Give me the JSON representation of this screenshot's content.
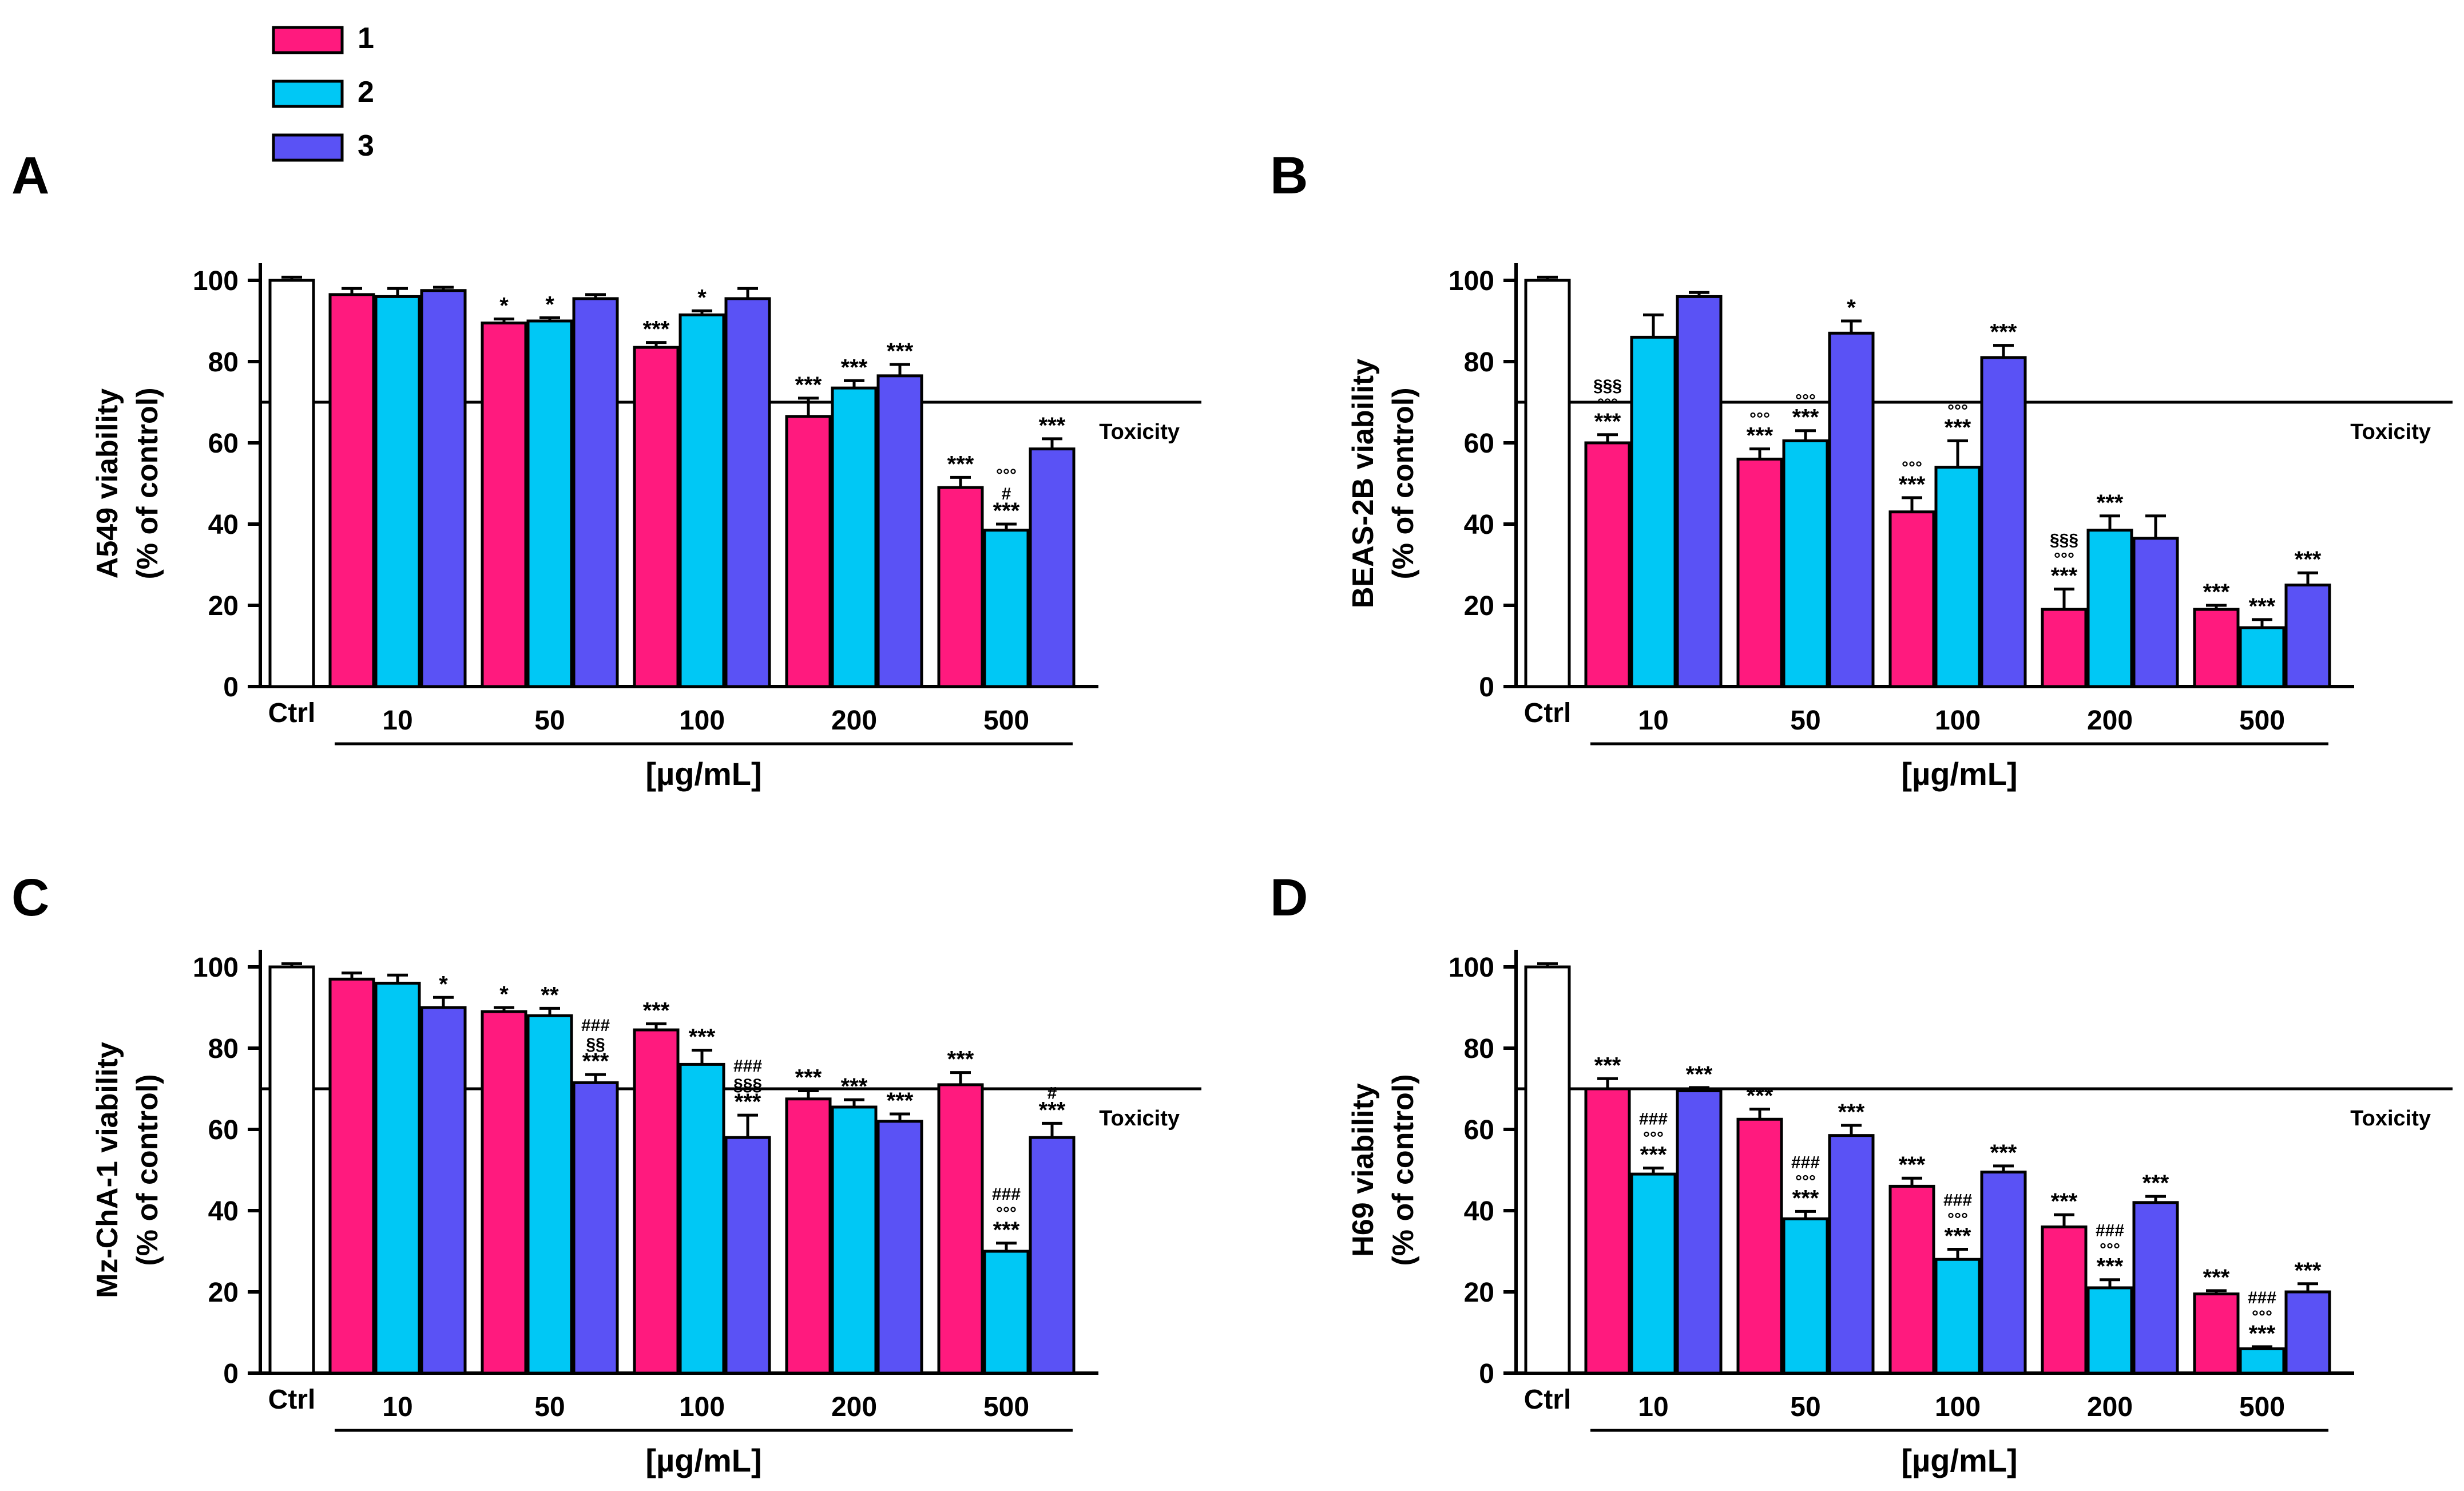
{
  "legend": [
    {
      "label": "1",
      "color": "#ff1a7e"
    },
    {
      "label": "2",
      "color": "#00c8f5"
    },
    {
      "label": "3",
      "color": "#5a52f5"
    }
  ],
  "colors": {
    "ctrl": "#ffffff",
    "stroke": "#000000"
  },
  "chart_data": [
    {
      "panel": "A",
      "type": "bar",
      "ylabel_line1": "A549 viability",
      "ylabel_line2": "(% of control)",
      "xlabel": "[µg/mL]",
      "ctrl_label": "Ctrl",
      "ylim": [
        0,
        100
      ],
      "yticks": [
        0,
        20,
        40,
        60,
        80,
        100
      ],
      "threshold": {
        "value": 70,
        "label": "Toxicity"
      },
      "ctrl": {
        "value": 100,
        "error": 0.8
      },
      "categories": [
        "10",
        "50",
        "100",
        "200",
        "500"
      ],
      "series": [
        {
          "name": "1",
          "values": [
            96.5,
            89.5,
            83.5,
            66.5,
            49
          ],
          "errors": [
            1.5,
            1.0,
            1.2,
            4.5,
            2.5
          ],
          "annotations": [
            [],
            [
              "*"
            ],
            [
              "***"
            ],
            [
              "***"
            ],
            [
              "***"
            ]
          ]
        },
        {
          "name": "2",
          "values": [
            96,
            90,
            91.5,
            73.5,
            38.5
          ],
          "errors": [
            2.0,
            0.8,
            1.0,
            1.8,
            1.5
          ],
          "annotations": [
            [],
            [
              "*"
            ],
            [
              "*"
            ],
            [
              "***"
            ],
            [
              "***",
              "#",
              "°°°"
            ]
          ]
        },
        {
          "name": "3",
          "values": [
            97.5,
            95.5,
            95.5,
            76.5,
            58.5
          ],
          "errors": [
            0.8,
            1.0,
            2.5,
            2.8,
            2.5
          ],
          "annotations": [
            [],
            [],
            [],
            [
              "***"
            ],
            [
              "***"
            ]
          ]
        }
      ]
    },
    {
      "panel": "B",
      "type": "bar",
      "ylabel_line1": "BEAS-2B viability",
      "ylabel_line2": "(% of control)",
      "xlabel": "[µg/mL]",
      "ctrl_label": "Ctrl",
      "ylim": [
        0,
        100
      ],
      "yticks": [
        0,
        20,
        40,
        60,
        80,
        100
      ],
      "threshold": {
        "value": 70,
        "label": "Toxicity"
      },
      "ctrl": {
        "value": 100,
        "error": 0.8
      },
      "categories": [
        "10",
        "50",
        "100",
        "200",
        "500"
      ],
      "series": [
        {
          "name": "1",
          "values": [
            60,
            56,
            43,
            19,
            19
          ],
          "errors": [
            2.0,
            2.5,
            3.5,
            5.0,
            1.0
          ],
          "annotations": [
            [
              "***",
              "°°°",
              "§§§"
            ],
            [
              "***",
              "°°°"
            ],
            [
              "***",
              "°°°"
            ],
            [
              "***",
              "°°°",
              "§§§"
            ],
            [
              "***"
            ]
          ]
        },
        {
          "name": "2",
          "values": [
            86,
            60.5,
            54,
            38.5,
            14.5
          ],
          "errors": [
            5.5,
            2.5,
            6.5,
            3.5,
            2.0
          ],
          "annotations": [
            [],
            [
              "***",
              "°°°"
            ],
            [
              "***",
              "°°°"
            ],
            [
              "***"
            ],
            [
              "***"
            ]
          ]
        },
        {
          "name": "3",
          "values": [
            96,
            87,
            81,
            36.5,
            25
          ],
          "errors": [
            1.0,
            3.0,
            3.0,
            5.5,
            3.0
          ],
          "annotations": [
            [],
            [
              "*"
            ],
            [
              "***"
            ],
            [],
            [
              "***"
            ]
          ]
        }
      ]
    },
    {
      "panel": "C",
      "type": "bar",
      "ylabel_line1": "Mz-ChA-1 viability",
      "ylabel_line2": "(% of control)",
      "xlabel": "[µg/mL]",
      "ctrl_label": "Ctrl",
      "ylim": [
        0,
        100
      ],
      "yticks": [
        0,
        20,
        40,
        60,
        80,
        100
      ],
      "threshold": {
        "value": 70,
        "label": "Toxicity"
      },
      "ctrl": {
        "value": 100,
        "error": 0.8
      },
      "categories": [
        "10",
        "50",
        "100",
        "200",
        "500"
      ],
      "series": [
        {
          "name": "1",
          "values": [
            97,
            89,
            84.5,
            67.5,
            71
          ],
          "errors": [
            1.5,
            1.0,
            1.5,
            2.0,
            3.0
          ],
          "annotations": [
            [],
            [
              "*"
            ],
            [
              "***"
            ],
            [
              "***"
            ],
            [
              "***"
            ]
          ]
        },
        {
          "name": "2",
          "values": [
            96,
            88,
            76,
            65.5,
            30
          ],
          "errors": [
            2.0,
            1.8,
            3.5,
            1.8,
            2.0
          ],
          "annotations": [
            [],
            [
              "**"
            ],
            [
              "***"
            ],
            [
              "***"
            ],
            [
              "***",
              "°°°",
              "###"
            ]
          ]
        },
        {
          "name": "3",
          "values": [
            90,
            71.5,
            58,
            62,
            58
          ],
          "errors": [
            2.5,
            2.0,
            5.5,
            1.8,
            3.5
          ],
          "annotations": [
            [
              "*"
            ],
            [
              "***",
              "§§",
              "###"
            ],
            [
              "***",
              "§§§",
              "###"
            ],
            [
              "***"
            ],
            [
              "***",
              "#"
            ]
          ]
        }
      ]
    },
    {
      "panel": "D",
      "type": "bar",
      "ylabel_line1": "H69 viability",
      "ylabel_line2": "(% of control)",
      "xlabel": "[µg/mL]",
      "ctrl_label": "Ctrl",
      "ylim": [
        0,
        100
      ],
      "yticks": [
        0,
        20,
        40,
        60,
        80,
        100
      ],
      "threshold": {
        "value": 70,
        "label": "Toxicity"
      },
      "ctrl": {
        "value": 100,
        "error": 0.8
      },
      "categories": [
        "10",
        "50",
        "100",
        "200",
        "500"
      ],
      "series": [
        {
          "name": "1",
          "values": [
            70,
            62.5,
            46,
            36,
            19.5
          ],
          "errors": [
            2.5,
            2.5,
            2.0,
            3.0,
            0.8
          ],
          "annotations": [
            [
              "***"
            ],
            [
              "***"
            ],
            [
              "***"
            ],
            [
              "***"
            ],
            [
              "***"
            ]
          ]
        },
        {
          "name": "2",
          "values": [
            49,
            38,
            28,
            21,
            6
          ],
          "errors": [
            1.5,
            1.8,
            2.5,
            2.0,
            0.5
          ],
          "annotations": [
            [
              "***",
              "°°°",
              "###"
            ],
            [
              "***",
              "°°°",
              "###"
            ],
            [
              "***",
              "°°°",
              "###"
            ],
            [
              "***",
              "°°°",
              "###"
            ],
            [
              "***",
              "°°°",
              "###"
            ]
          ]
        },
        {
          "name": "3",
          "values": [
            69.5,
            58.5,
            49.5,
            42,
            20
          ],
          "errors": [
            0.8,
            2.5,
            1.5,
            1.5,
            2.0
          ],
          "annotations": [
            [
              "***"
            ],
            [
              "***"
            ],
            [
              "***"
            ],
            [
              "***"
            ],
            [
              "***"
            ]
          ]
        }
      ]
    }
  ]
}
